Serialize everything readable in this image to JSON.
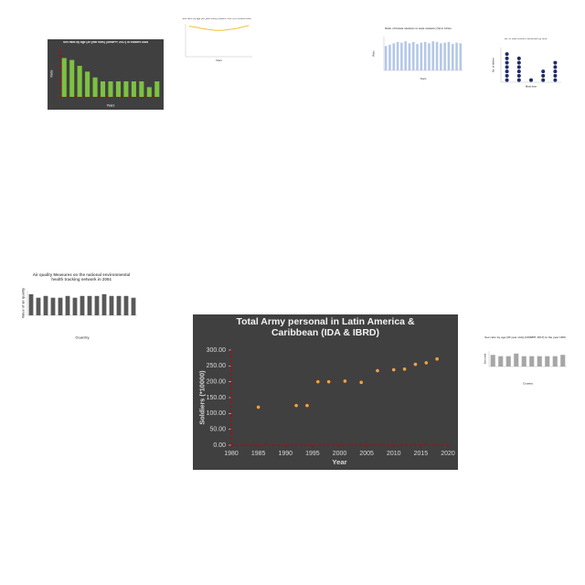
{
  "chart_data": [
    {
      "type": "scatter",
      "title": "Total Army personal in Latin America & Caribbean (IDA & IBRD)",
      "theme": "dark",
      "color": "#f4a340",
      "x": [
        1985,
        1992,
        1994,
        1996,
        1998,
        2001,
        2004,
        2007,
        2010,
        2012,
        2014,
        2016,
        2018
      ],
      "values": [
        120,
        125,
        125,
        200,
        200,
        202,
        198,
        235,
        238,
        240,
        255,
        260,
        272
      ],
      "xlim": [
        1980,
        2020
      ],
      "xticks": [
        1980,
        1985,
        1990,
        1995,
        2000,
        2005,
        2010,
        2015,
        2020
      ],
      "ylim": [
        0,
        300
      ],
      "yticks": [
        {
          "value": 0,
          "label": "0.00"
        },
        {
          "value": 50,
          "label": "50.00"
        },
        {
          "value": 100,
          "label": "100.00"
        },
        {
          "value": 150,
          "label": "150.00"
        },
        {
          "value": 200,
          "label": "200.00"
        },
        {
          "value": 250,
          "label": "250.00"
        },
        {
          "value": 300,
          "label": "300.00"
        }
      ],
      "xlabel": "Year",
      "ylabel": "Soldiers (*10000)"
    },
    {
      "type": "bar",
      "title": "Sex ratio by age (30 year olds) (UNWPP, 2017) in Eastern Asia",
      "theme": "dark",
      "color": "#7dc142",
      "values": [
        108,
        107,
        104,
        101,
        98,
        96,
        96,
        96,
        96,
        96,
        96,
        93,
        96
      ],
      "ylim": [
        88,
        112
      ],
      "xlabel": "Years",
      "ylabel": "Ratio"
    },
    {
      "type": "line",
      "title": "Sex ratio by age (30 year olds) (UNWPP, 2017) in Central Asia",
      "theme": "light",
      "color": "#f2c037",
      "values": [
        37,
        36,
        34,
        33,
        32,
        32,
        33,
        34,
        36,
        38
      ],
      "ylim": [
        0,
        40
      ],
      "xlabel": "Years"
    },
    {
      "type": "bar",
      "title": "Ratio of female students to male students (%) in Africa",
      "theme": "light",
      "color": "#b4c7e7",
      "values": [
        36,
        38,
        40,
        42,
        41,
        43,
        40,
        42,
        39,
        41,
        42,
        40,
        43,
        42,
        40,
        41,
        42,
        39,
        41,
        40
      ],
      "ylim": [
        0,
        50
      ],
      "xlabel": "Years",
      "ylabel": "Ratio"
    },
    {
      "type": "dot",
      "title": "No. of main dishes consumed by time",
      "theme": "light",
      "color": "#1f2a6b",
      "values": [
        7,
        6,
        1,
        3,
        5
      ],
      "ylim": [
        0,
        8
      ],
      "xlabel": "Meal time",
      "ylabel": "No. of dishes"
    },
    {
      "type": "bar",
      "title": "Air quality Measures on the national environmental health tracking network in 2004",
      "theme": "light",
      "color": "#595959",
      "values": [
        12,
        10,
        11,
        10,
        10,
        11,
        10,
        11,
        11,
        11,
        12,
        11,
        11,
        11,
        10
      ],
      "ylim": [
        0,
        14
      ],
      "xlabel": "Country",
      "ylabel": "Value of air quality"
    },
    {
      "type": "bar",
      "title": "Sex ratio by age (30 year olds) (UNWPP, 2017) in the year 1950",
      "theme": "light",
      "color": "#a6a6a6",
      "values": [
        9,
        8,
        8,
        10,
        8,
        8,
        8,
        8,
        8,
        9
      ],
      "ylim": [
        0,
        12
      ],
      "xlabel": "Country",
      "ylabel": "Sex ratio"
    }
  ]
}
